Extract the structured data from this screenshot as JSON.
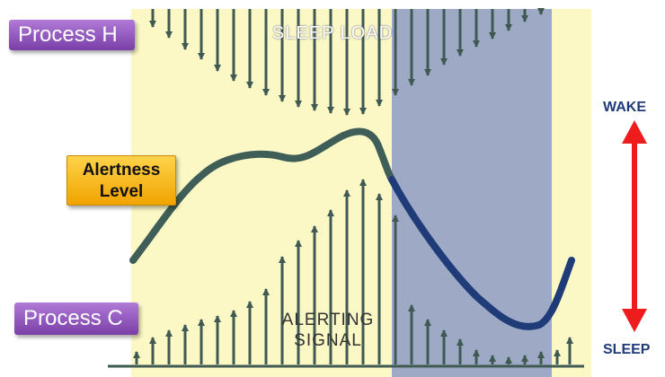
{
  "labels": {
    "process_h": "Process H",
    "process_c": "Process C",
    "alertness_line1": "Alertness",
    "alertness_line2": "Level",
    "sleep_load": "SLEEP LOAD",
    "alerting_line1": "ALERTING",
    "alerting_line2": "SIGNAL",
    "wake": "WAKE",
    "sleep": "SLEEP"
  },
  "colors": {
    "day_background": "#fbf8c6",
    "night_band": "#9ea9c6",
    "arrow": "#3e5a52",
    "curve_day": "#3f5e57",
    "curve_night": "#1f3b78",
    "wake_sleep_arrow": "#ee1c1c",
    "process_tag": "#8e4fbf",
    "alertness_tag": "#f5b800"
  }
}
